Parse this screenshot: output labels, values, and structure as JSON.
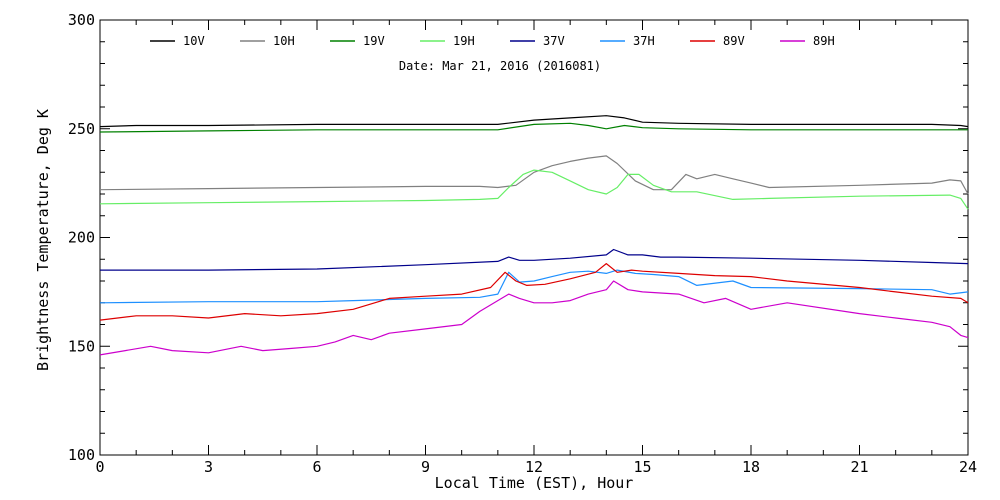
{
  "chart_data": {
    "type": "line",
    "annotation": "Date: Mar 21, 2016 (2016081)",
    "xlabel": "Local Time (EST), Hour",
    "ylabel": "Brightness Temperature, Deg K",
    "xlim": [
      0,
      24
    ],
    "ylim": [
      100,
      300
    ],
    "xticks": [
      0,
      3,
      6,
      9,
      12,
      15,
      18,
      21,
      24
    ],
    "xtick_labels": [
      "0",
      "3",
      "6",
      "9",
      "12",
      "15",
      "18",
      "21",
      "24"
    ],
    "yticks": [
      100,
      150,
      200,
      250,
      300
    ],
    "ytick_labels": [
      "100",
      "150",
      "200",
      "250",
      "300"
    ],
    "grid": false,
    "legend_position": "top",
    "series": [
      {
        "name": "10V",
        "color": "#000000",
        "x": [
          0,
          1,
          3,
          6,
          9,
          11,
          12,
          13,
          14,
          14.5,
          15,
          16,
          18,
          21,
          23,
          23.8,
          24
        ],
        "y": [
          251,
          251.5,
          251.5,
          252,
          252,
          252,
          254,
          255,
          256,
          255,
          253,
          252.5,
          252,
          252,
          252,
          251.5,
          251
        ]
      },
      {
        "name": "10H",
        "color": "#808080",
        "x": [
          0,
          3,
          6,
          9,
          10.5,
          11,
          11.5,
          12,
          12.5,
          13,
          13.5,
          14,
          14.3,
          14.8,
          15.3,
          15.8,
          16.2,
          16.5,
          17,
          17.5,
          18,
          18.5,
          21,
          23,
          23.5,
          23.8,
          24
        ],
        "y": [
          222,
          222.5,
          223,
          223.5,
          223.5,
          223,
          224,
          230,
          233,
          235,
          236.5,
          237.5,
          234,
          226,
          222,
          222,
          229,
          227,
          229,
          227,
          225,
          223,
          224,
          225,
          226.5,
          226,
          220
        ]
      },
      {
        "name": "19V",
        "color": "#008000",
        "x": [
          0,
          3,
          6,
          9,
          11,
          12,
          13,
          13.5,
          14,
          14.5,
          15,
          16,
          18,
          21,
          24
        ],
        "y": [
          248.5,
          249,
          249.5,
          249.5,
          249.5,
          252,
          252.5,
          251.5,
          250,
          251.5,
          250.5,
          250,
          249.5,
          249.5,
          249.5
        ]
      },
      {
        "name": "19H",
        "color": "#66ee66",
        "x": [
          0,
          3,
          6,
          9,
          10.5,
          11,
          11.3,
          11.7,
          12,
          12.5,
          13,
          13.5,
          14,
          14.3,
          14.6,
          14.9,
          15.3,
          15.8,
          16.5,
          17.5,
          18.5,
          21,
          23.5,
          23.8,
          24
        ],
        "y": [
          215.5,
          216,
          216.5,
          217,
          217.5,
          218,
          223,
          229,
          231,
          230,
          226,
          222,
          220,
          223,
          229,
          229,
          224,
          221,
          221,
          217.5,
          218,
          219,
          219.5,
          218,
          213
        ]
      },
      {
        "name": "37V",
        "color": "#00008b",
        "x": [
          0,
          3,
          6,
          9,
          11,
          11.3,
          11.6,
          12,
          13,
          14,
          14.2,
          14.6,
          15,
          15.5,
          16,
          18,
          21,
          23,
          24
        ],
        "y": [
          185,
          185,
          185.5,
          187.5,
          189,
          191,
          189.5,
          189.5,
          190.5,
          192,
          194.5,
          192,
          192,
          191,
          191,
          190.5,
          189.5,
          188.5,
          188
        ]
      },
      {
        "name": "37H",
        "color": "#1e90ff",
        "x": [
          0,
          3,
          6,
          7,
          9,
          10.5,
          11,
          11.3,
          11.6,
          12,
          12.5,
          13,
          13.5,
          14,
          14.3,
          14.8,
          15.3,
          16,
          16.5,
          17.5,
          18,
          21,
          23,
          23.5,
          24
        ],
        "y": [
          170,
          170.5,
          170.5,
          171,
          172,
          172.5,
          174,
          184,
          179.5,
          180,
          182,
          184,
          184.5,
          183.5,
          185,
          183.5,
          183,
          182,
          178,
          180,
          177,
          176.5,
          176,
          174,
          175
        ]
      },
      {
        "name": "89V",
        "color": "#dd0000",
        "x": [
          0,
          1,
          2,
          3,
          4,
          5,
          6,
          7,
          8,
          9,
          10,
          10.8,
          11.2,
          11.5,
          11.8,
          12.3,
          13,
          13.7,
          14,
          14.3,
          14.7,
          15,
          16,
          17,
          18,
          19,
          21,
          22,
          23,
          23.8,
          24
        ],
        "y": [
          162,
          164,
          164,
          163,
          165,
          164,
          165,
          167,
          172,
          173,
          174,
          177,
          184,
          180,
          178,
          178.5,
          181,
          184,
          188,
          184,
          185,
          184.5,
          183.5,
          182.5,
          182,
          180,
          177,
          175,
          173,
          172,
          170
        ]
      },
      {
        "name": "89H",
        "color": "#cc00cc",
        "x": [
          0,
          0.7,
          1.4,
          2,
          3,
          3.9,
          4.5,
          5.3,
          6,
          6.5,
          7,
          7.5,
          8,
          9,
          10,
          10.5,
          11,
          11.3,
          11.6,
          12,
          12.5,
          13,
          13.5,
          14,
          14.2,
          14.6,
          15,
          16,
          16.7,
          17.3,
          18,
          19,
          21,
          22,
          23,
          23.5,
          23.8,
          24
        ],
        "y": [
          146,
          148,
          150,
          148,
          147,
          150,
          148,
          149,
          150,
          152,
          155,
          153,
          156,
          158,
          160,
          166,
          171,
          174,
          172,
          170,
          170,
          171,
          174,
          176,
          180,
          176,
          175,
          174,
          170,
          172,
          167,
          170,
          165,
          163,
          161,
          159,
          155,
          154
        ]
      }
    ]
  }
}
